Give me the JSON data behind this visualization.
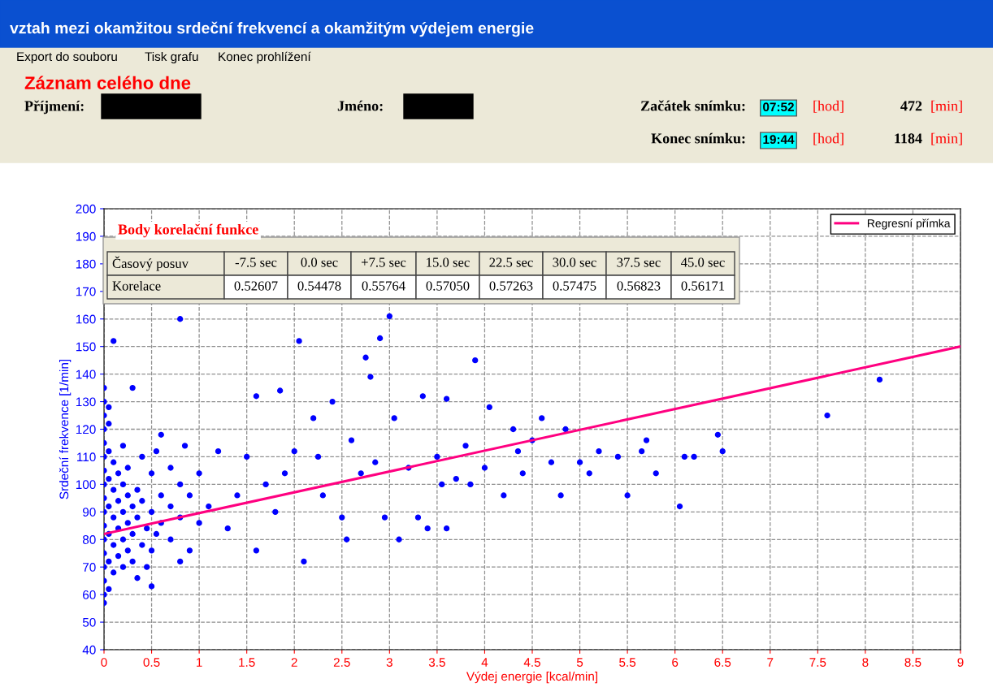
{
  "chart_data": {
    "type": "scatter",
    "title": "vztah mezi okamžitou srdeční frekvencí a okamžitým výdejem energie",
    "xlabel": "Výdej energie [kcal/min]",
    "ylabel": "Srdeční frekvence [1/min]",
    "xlim": [
      0,
      9
    ],
    "xticks": [
      0,
      0.5,
      1,
      1.5,
      2,
      2.5,
      3,
      3.5,
      4,
      4.5,
      5,
      5.5,
      6,
      6.5,
      7,
      7.5,
      8,
      8.5,
      9
    ],
    "ylim": [
      40,
      200
    ],
    "yticks": [
      40,
      50,
      60,
      70,
      80,
      90,
      100,
      110,
      120,
      130,
      140,
      150,
      160,
      170,
      180,
      190,
      200
    ],
    "grid": true,
    "legend": "top right",
    "series": [
      {
        "color": "#0000ff",
        "marker": "circle",
        "x": [
          0,
          0,
          0,
          0,
          0,
          0,
          0,
          0,
          0,
          0,
          0,
          0,
          0,
          0,
          0,
          0,
          0,
          0.05,
          0.05,
          0.05,
          0.05,
          0.05,
          0.05,
          0.05,
          0.05,
          0.1,
          0.1,
          0.1,
          0.1,
          0.1,
          0.1,
          0.15,
          0.15,
          0.15,
          0.15,
          0.2,
          0.2,
          0.2,
          0.2,
          0.2,
          0.25,
          0.25,
          0.25,
          0.25,
          0.3,
          0.3,
          0.3,
          0.3,
          0.35,
          0.35,
          0.35,
          0.4,
          0.4,
          0.4,
          0.45,
          0.45,
          0.5,
          0.5,
          0.5,
          0.5,
          0.55,
          0.55,
          0.6,
          0.6,
          0.6,
          0.7,
          0.7,
          0.7,
          0.8,
          0.8,
          0.8,
          0.8,
          0.85,
          0.9,
          0.9,
          1.0,
          1.0,
          1.1,
          1.2,
          1.3,
          1.4,
          1.5,
          1.6,
          1.6,
          1.7,
          1.8,
          1.85,
          1.9,
          2.0,
          2.05,
          2.1,
          2.2,
          2.25,
          2.3,
          2.4,
          2.5,
          2.55,
          2.6,
          2.7,
          2.75,
          2.8,
          2.85,
          2.9,
          2.95,
          3.0,
          3.05,
          3.1,
          3.2,
          3.3,
          3.35,
          3.4,
          3.5,
          3.55,
          3.6,
          3.6,
          3.7,
          3.8,
          3.85,
          3.9,
          4.0,
          4.05,
          4.2,
          4.3,
          4.35,
          4.4,
          4.5,
          4.6,
          4.7,
          4.8,
          4.85,
          5.0,
          5.1,
          5.2,
          5.4,
          5.5,
          5.65,
          5.7,
          5.8,
          6.05,
          6.1,
          6.2,
          6.45,
          6.5,
          7.6,
          8.15
        ],
        "values": [
          57,
          60,
          65,
          70,
          75,
          80,
          85,
          90,
          95,
          100,
          105,
          110,
          115,
          120,
          125,
          130,
          135,
          62,
          72,
          82,
          92,
          102,
          112,
          122,
          128,
          152,
          68,
          78,
          88,
          98,
          108,
          74,
          84,
          94,
          104,
          70,
          80,
          90,
          100,
          114,
          76,
          86,
          96,
          106,
          72,
          82,
          92,
          135,
          66,
          88,
          98,
          78,
          94,
          110,
          70,
          84,
          63,
          76,
          90,
          104,
          82,
          112,
          86,
          96,
          118,
          80,
          92,
          106,
          160,
          72,
          88,
          100,
          114,
          76,
          96,
          86,
          104,
          92,
          112,
          84,
          96,
          110,
          76,
          132,
          100,
          90,
          134,
          104,
          112,
          152,
          72,
          124,
          110,
          96,
          130,
          88,
          80,
          116,
          104,
          146,
          139,
          108,
          153,
          88,
          161,
          124,
          80,
          106,
          88,
          132,
          84,
          110,
          100,
          84,
          131,
          102,
          114,
          100,
          145,
          106,
          128,
          96,
          120,
          112,
          104,
          116,
          124,
          108,
          96,
          120,
          108,
          104,
          112,
          110,
          96,
          112,
          116,
          104,
          92,
          110,
          110,
          118,
          112,
          125,
          138
        ]
      },
      {
        "type": "line",
        "name": "Regresní přímka",
        "color": "#ff0080",
        "x": [
          0,
          9
        ],
        "values": [
          82,
          150
        ]
      }
    ],
    "annotations": [
      "Export do souboru",
      "Tisk grafu",
      "Konec prohlížení",
      "Záznam celého dne",
      "Příjmení:",
      "Jméno:",
      "Začátek snímku:",
      "07:52",
      "[hod]",
      "472",
      "[min]",
      "Konec snímku:",
      "19:44",
      "[hod]",
      "1184",
      "[min]",
      "Body korelační funkce",
      "Časový posuv",
      "-7.5 sec",
      "0.0 sec",
      "+7.5 sec",
      "15.0 sec",
      "22.5 sec",
      "30.0 sec",
      "37.5 sec",
      "45.0 sec",
      "Korelace",
      "0.52607",
      "0.54478",
      "0.55764",
      "0.57050",
      "0.57263",
      "0.57475",
      "0.56823",
      "0.56171"
    ]
  }
}
